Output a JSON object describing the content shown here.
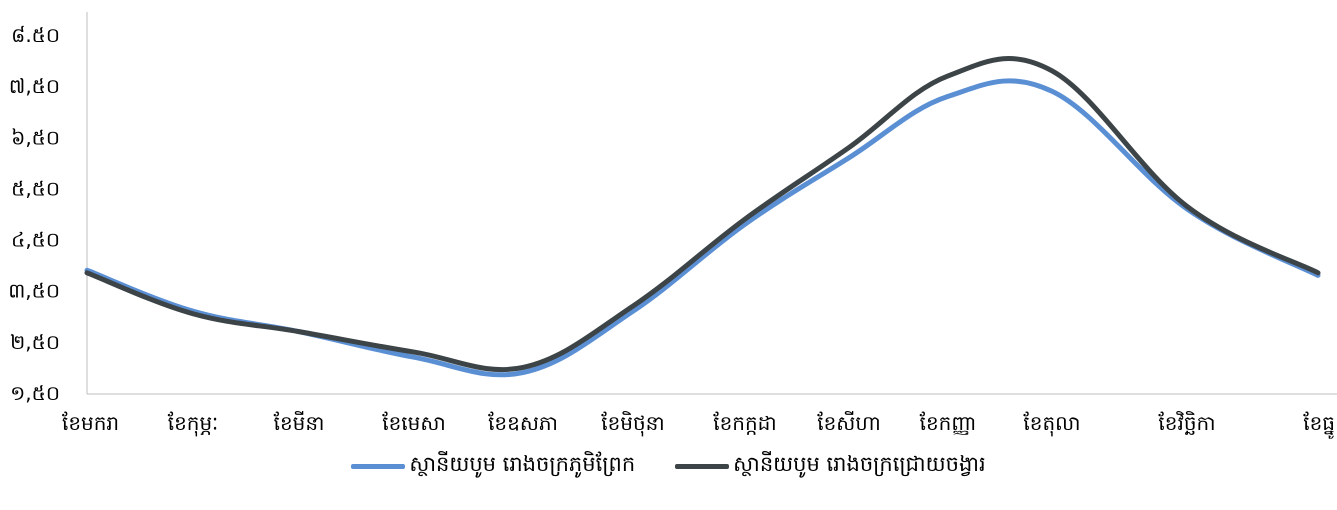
{
  "chart_data": {
    "type": "line",
    "title": "",
    "xlabel": "",
    "ylabel": "",
    "categories": [
      "ខែមករា",
      "ខែកុម្ភៈ",
      "ខែមីនា",
      "ខែមេសា",
      "ខែឧសភា",
      "ខែមិថុនា",
      "ខែកក្កដា",
      "ខែសីហា",
      "ខែកញ្ញា",
      "ខែតុលា",
      "ខែវិច្ឆិកា",
      "ខែធ្នូ"
    ],
    "y_tick_labels": [
      "១,៥០",
      "២,៥០",
      "៣,៥០",
      "៤,៥០",
      "៥,៥០",
      "៦,៥០",
      "៧,៥០",
      "៨.៥០"
    ],
    "ylim": [
      1.5,
      8.5
    ],
    "grid": false,
    "legend_position": "bottom",
    "series": [
      {
        "name": "ស្ថានីយបូម រោងចក្រភូមិព្រែក",
        "color": "#5B8FD4",
        "values": [
          3.9,
          3.1,
          2.7,
          2.2,
          1.9,
          3.1,
          4.8,
          6.1,
          7.3,
          7.4,
          5.1,
          3.8
        ]
      },
      {
        "name": "ស្ថានីយបូម រោងចក្រជ្រោយចង្វារ",
        "color": "#3C4447",
        "values": [
          3.85,
          3.05,
          2.7,
          2.3,
          2.0,
          3.2,
          4.9,
          6.3,
          7.7,
          7.8,
          5.15,
          3.85
        ]
      }
    ]
  }
}
